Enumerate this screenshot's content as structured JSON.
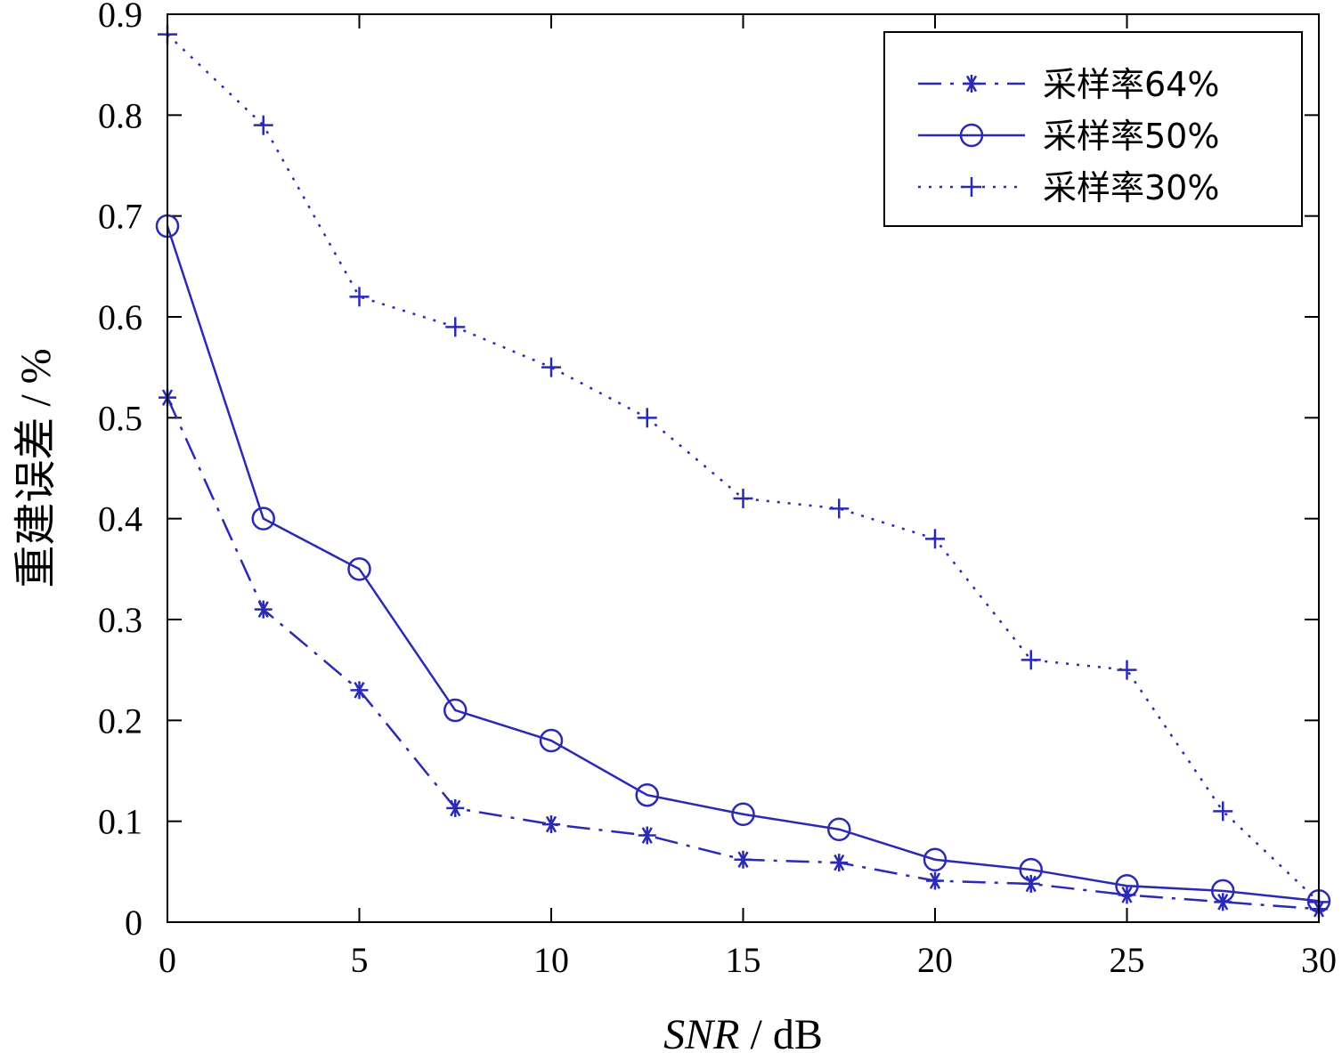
{
  "chart_data": {
    "type": "line",
    "x": [
      0,
      2.5,
      5,
      7.5,
      10,
      12.5,
      15,
      17.5,
      20,
      22.5,
      25,
      27.5,
      30
    ],
    "xlabel": "SNR / dB",
    "xlabel_italic": "SNR",
    "xlabel_unit": " / dB",
    "ylabel": "重建误差 / %",
    "xlim": [
      0,
      30
    ],
    "ylim": [
      0,
      0.9
    ],
    "xticks": [
      0,
      5,
      10,
      15,
      20,
      25,
      30
    ],
    "xtick_labels": [
      "0",
      "5",
      "10",
      "15",
      "20",
      "25",
      "30"
    ],
    "yticks": [
      0,
      0.1,
      0.2,
      0.3,
      0.4,
      0.5,
      0.6,
      0.7,
      0.8,
      0.9
    ],
    "ytick_labels": [
      "0",
      "0.1",
      "0.2",
      "0.3",
      "0.4",
      "0.5",
      "0.6",
      "0.7",
      "0.8",
      "0.9"
    ],
    "grid": false,
    "legend_position": "top-right",
    "series": [
      {
        "name": "采样率64%",
        "marker": "star",
        "line_style": "dash-dot",
        "color": "#2a2ab4",
        "values": [
          0.52,
          0.31,
          0.23,
          0.113,
          0.097,
          0.086,
          0.062,
          0.059,
          0.041,
          0.038,
          0.027,
          0.02,
          0.013
        ]
      },
      {
        "name": "采样率50%",
        "marker": "circle",
        "line_style": "solid",
        "color": "#2a2ab4",
        "values": [
          0.69,
          0.4,
          0.35,
          0.21,
          0.18,
          0.126,
          0.107,
          0.092,
          0.062,
          0.052,
          0.036,
          0.031,
          0.021
        ]
      },
      {
        "name": "采样率30%",
        "marker": "plus",
        "line_style": "dotted",
        "color": "#2a2ab4",
        "values": [
          0.88,
          0.79,
          0.62,
          0.59,
          0.55,
          0.5,
          0.42,
          0.41,
          0.38,
          0.26,
          0.25,
          0.11,
          0.02
        ]
      }
    ]
  }
}
